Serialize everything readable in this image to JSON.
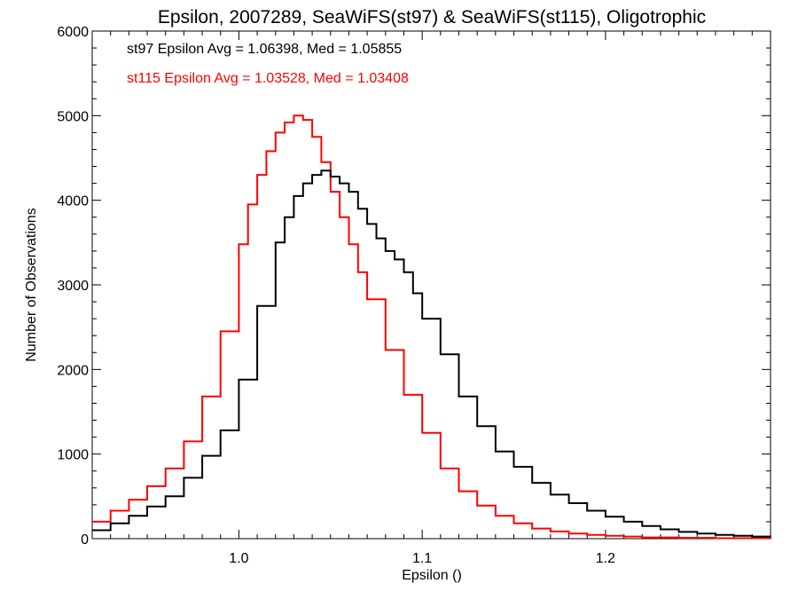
{
  "chart_data": {
    "type": "line",
    "title": "Epsilon, 2007289, SeaWiFS(st97) & SeaWiFS(st115), Oligotrophic",
    "xlabel": "Epsilon ()",
    "ylabel": "Number of Observations",
    "xlim": [
      0.92,
      1.29
    ],
    "ylim": [
      0,
      6000
    ],
    "xticks": [
      1.0,
      1.1,
      1.2
    ],
    "xtick_labels": [
      "1.0",
      "1.1",
      "1.2"
    ],
    "yticks": [
      0,
      1000,
      2000,
      3000,
      4000,
      5000,
      6000
    ],
    "ytick_labels": [
      "0",
      "1000",
      "2000",
      "3000",
      "4000",
      "5000",
      "6000"
    ],
    "grid": false,
    "legend": "none",
    "annotations": [
      {
        "text": "st97 Epsilon Avg = 1.06398, Med = 1.05855",
        "color": "#000000"
      },
      {
        "text": "st115 Epsilon Avg = 1.03528, Med = 1.03408",
        "color": "#ff0000"
      }
    ],
    "series": [
      {
        "color": "#000000",
        "style": "step",
        "x": [
          0.92,
          0.93,
          0.94,
          0.95,
          0.96,
          0.97,
          0.98,
          0.99,
          1.0,
          1.01,
          1.02,
          1.025,
          1.03,
          1.035,
          1.04,
          1.045,
          1.05,
          1.055,
          1.06,
          1.065,
          1.07,
          1.075,
          1.08,
          1.085,
          1.09,
          1.095,
          1.1,
          1.11,
          1.12,
          1.13,
          1.14,
          1.15,
          1.16,
          1.17,
          1.18,
          1.19,
          1.2,
          1.21,
          1.22,
          1.23,
          1.24,
          1.25,
          1.26,
          1.27,
          1.28,
          1.29
        ],
        "y": [
          100,
          180,
          270,
          380,
          500,
          720,
          980,
          1280,
          1880,
          2750,
          3500,
          3800,
          4050,
          4200,
          4300,
          4350,
          4280,
          4200,
          4100,
          3900,
          3720,
          3550,
          3400,
          3300,
          3150,
          2900,
          2600,
          2180,
          1680,
          1330,
          1030,
          850,
          660,
          520,
          420,
          330,
          260,
          200,
          150,
          110,
          80,
          60,
          45,
          35,
          25,
          20
        ]
      },
      {
        "color": "#ff0000",
        "style": "step",
        "x": [
          0.92,
          0.93,
          0.94,
          0.95,
          0.96,
          0.97,
          0.98,
          0.99,
          1.0,
          1.005,
          1.01,
          1.015,
          1.02,
          1.025,
          1.03,
          1.035,
          1.04,
          1.045,
          1.05,
          1.055,
          1.06,
          1.065,
          1.07,
          1.08,
          1.09,
          1.1,
          1.11,
          1.12,
          1.13,
          1.14,
          1.15,
          1.16,
          1.17,
          1.18,
          1.19,
          1.2,
          1.21,
          1.22,
          1.24,
          1.26,
          1.29
        ],
        "y": [
          200,
          330,
          460,
          620,
          830,
          1150,
          1680,
          2450,
          3480,
          3950,
          4300,
          4580,
          4800,
          4920,
          5000,
          4950,
          4750,
          4450,
          4100,
          3800,
          3480,
          3150,
          2830,
          2230,
          1700,
          1250,
          830,
          560,
          390,
          270,
          180,
          120,
          85,
          60,
          45,
          35,
          25,
          15,
          10,
          5,
          0
        ]
      }
    ]
  }
}
